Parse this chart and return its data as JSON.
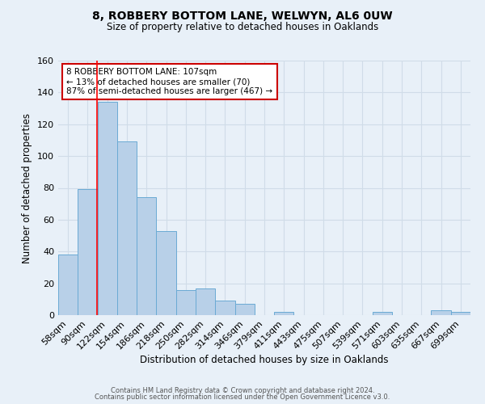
{
  "title": "8, ROBBERY BOTTOM LANE, WELWYN, AL6 0UW",
  "subtitle": "Size of property relative to detached houses in Oaklands",
  "xlabel": "Distribution of detached houses by size in Oaklands",
  "ylabel": "Number of detached properties",
  "bar_labels": [
    "58sqm",
    "90sqm",
    "122sqm",
    "154sqm",
    "186sqm",
    "218sqm",
    "250sqm",
    "282sqm",
    "314sqm",
    "346sqm",
    "379sqm",
    "411sqm",
    "443sqm",
    "475sqm",
    "507sqm",
    "539sqm",
    "571sqm",
    "603sqm",
    "635sqm",
    "667sqm",
    "699sqm"
  ],
  "bar_heights": [
    38,
    79,
    134,
    109,
    74,
    53,
    16,
    17,
    9,
    7,
    0,
    2,
    0,
    0,
    0,
    0,
    2,
    0,
    0,
    3,
    2
  ],
  "bar_color": "#b8d0e8",
  "bar_edge_color": "#6aaad4",
  "grid_color": "#d0dce8",
  "bg_color": "#e8f0f8",
  "red_line_x": 1.47,
  "annotation_text": "8 ROBBERY BOTTOM LANE: 107sqm\n← 13% of detached houses are smaller (70)\n87% of semi-detached houses are larger (467) →",
  "annotation_box_color": "#ffffff",
  "annotation_box_edge": "#cc0000",
  "ylim": [
    0,
    160
  ],
  "yticks": [
    0,
    20,
    40,
    60,
    80,
    100,
    120,
    140,
    160
  ],
  "footer1": "Contains HM Land Registry data © Crown copyright and database right 2024.",
  "footer2": "Contains public sector information licensed under the Open Government Licence v3.0."
}
